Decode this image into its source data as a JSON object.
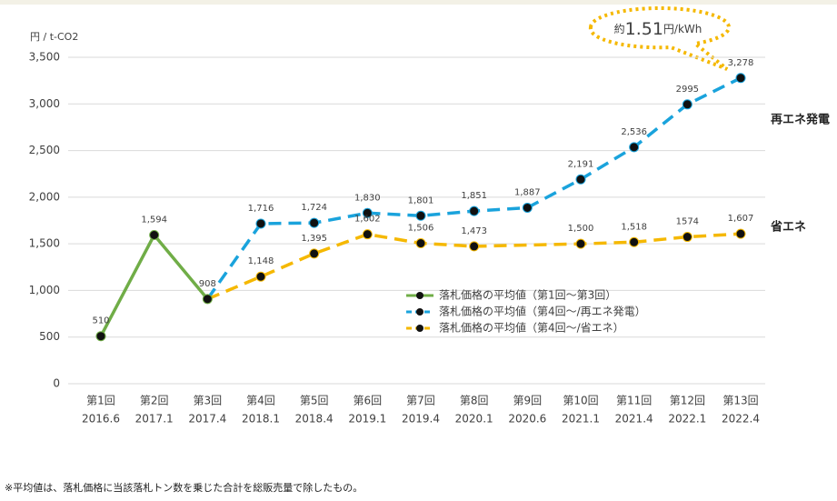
{
  "chart_data": {
    "type": "line",
    "y_unit": "円 / t-CO2",
    "categories": [
      "第1回",
      "第2回",
      "第3回",
      "第4回",
      "第5回",
      "第6回",
      "第7回",
      "第8回",
      "第9回",
      "第10回",
      "第11回",
      "第12回",
      "第13回"
    ],
    "category_dates": [
      "2016.6",
      "2017.1",
      "2017.4",
      "2018.1",
      "2018.4",
      "2019.1",
      "2019.4",
      "2020.1",
      "2020.6",
      "2021.1",
      "2021.4",
      "2022.1",
      "2022.4"
    ],
    "series": [
      {
        "name": "落札価格の平均値（第1回～第3回）",
        "color": "#70ad47",
        "dashed": false,
        "values": [
          510,
          1594,
          908,
          null,
          null,
          null,
          null,
          null,
          null,
          null,
          null,
          null,
          null
        ],
        "value_labels": [
          "510",
          "1,594",
          "908",
          null,
          null,
          null,
          null,
          null,
          null,
          null,
          null,
          null,
          null
        ]
      },
      {
        "name": "落札価格の平均値（第4回～/再エネ発電）",
        "color": "#1aa3dc",
        "dashed": true,
        "values": [
          null,
          null,
          908,
          1716,
          1724,
          1830,
          1801,
          1851,
          1887,
          2191,
          2536,
          2995,
          3278
        ],
        "value_labels": [
          null,
          null,
          null,
          "1,716",
          "1,724",
          "1,830",
          "1,801",
          "1,851",
          "1,887",
          "2,191",
          "2,536",
          "2995",
          "3,278"
        ]
      },
      {
        "name": "落札価格の平均値（第4回～/省エネ）",
        "color": "#f5b800",
        "dashed": true,
        "values": [
          null,
          null,
          908,
          1148,
          1395,
          1602,
          1506,
          1473,
          1487,
          1500,
          1518,
          1574,
          1607
        ],
        "value_labels": [
          null,
          null,
          null,
          "1,148",
          "1,395",
          "1,602",
          "1,506",
          "1,473",
          null,
          "1,500",
          "1,518",
          "1574",
          "1,607"
        ]
      }
    ],
    "ylim": [
      0,
      3500
    ],
    "yticks": [
      0,
      {
        "value": 500,
        "label": "500"
      },
      {
        "value": 1000,
        "label": "1,000"
      },
      {
        "value": 1500,
        "label": "1,500"
      },
      {
        "value": 2000,
        "label": "2,000"
      },
      {
        "value": 2500,
        "label": "2,500"
      },
      {
        "value": 3000,
        "label": "3,000"
      },
      {
        "value": 3500,
        "label": "3,500"
      }
    ],
    "grid": true,
    "series_end_labels": [
      "再エネ発電",
      "省エネ"
    ],
    "annotation": {
      "prefix": "約",
      "number": "1.51",
      "suffix": "円/kWh"
    },
    "footnote": "※平均値は、落札価格に当該落札トン数を乗じた合計を総販売量で除したもの。"
  }
}
